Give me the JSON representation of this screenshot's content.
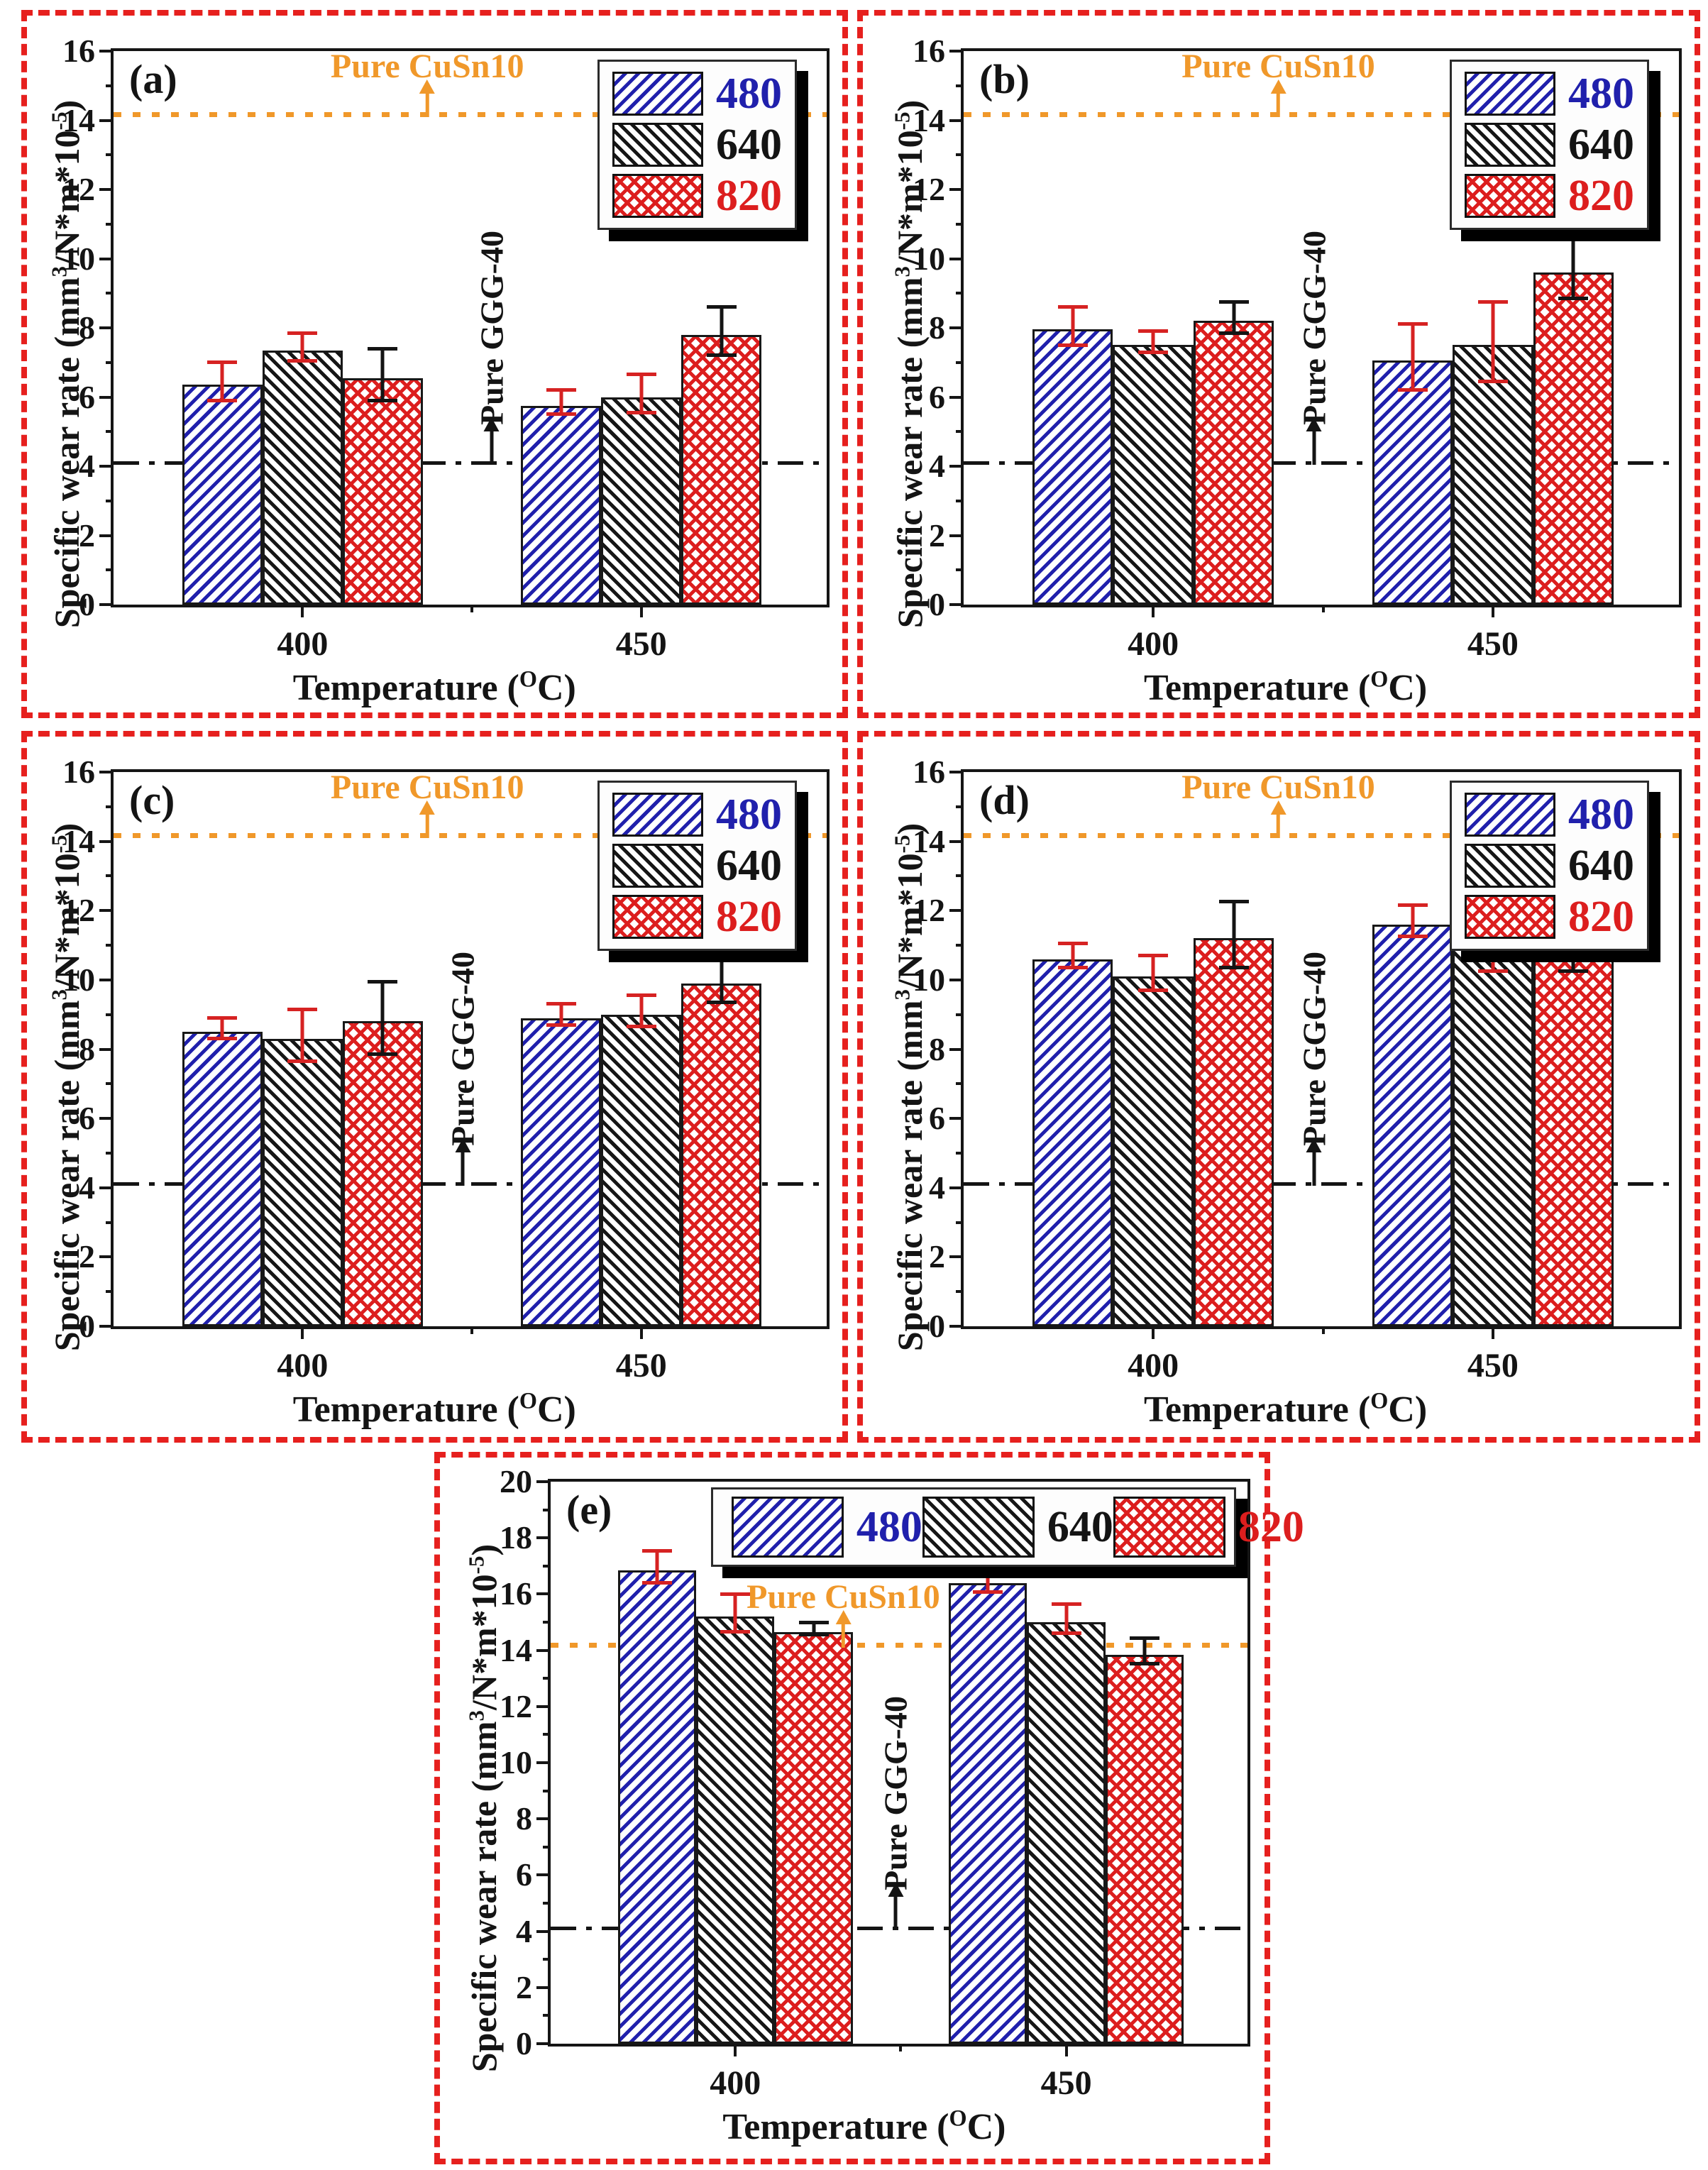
{
  "figure": {
    "background": "#ffffff",
    "panel_border_color": "#e6201e",
    "series_colors": {
      "480": "#2020ac",
      "640": "#141414",
      "820": "#dc1e1e"
    },
    "error_bar_colors": {
      "480": "#d62222",
      "640": "#d62222",
      "820": "#141414"
    },
    "ref_line_colors": {
      "pure_cusn10": "#f0982a",
      "pure_ggg40": "#141414"
    }
  },
  "labels": {
    "ylabel_text": "Specific wear rate (mm3/N*m*10-5)",
    "ylabel_segments": [
      {
        "t": "Specific wear rate (mm"
      },
      {
        "t": "3",
        "sup": true
      },
      {
        "t": "/N*m*10"
      },
      {
        "t": "-5",
        "sup": true
      },
      {
        "t": ")"
      }
    ],
    "xlabel_text": "Temperature (OC)",
    "xlabel_segments": [
      {
        "t": "Temperature ("
      },
      {
        "t": "O",
        "sup": true
      },
      {
        "t": "C)"
      }
    ],
    "cusn10_annotation": "Pure CuSn10",
    "ggg40_annotation": "Pure GGG-40",
    "legend_entries": [
      "480",
      "640",
      "820"
    ]
  },
  "chart_data": [
    {
      "type": "bar",
      "panel_label": "(a)",
      "categories": [
        "400",
        "450"
      ],
      "series": [
        {
          "name": "480",
          "values": [
            6.35,
            5.75
          ],
          "errors": [
            0.5,
            0.3
          ]
        },
        {
          "name": "640",
          "values": [
            7.35,
            6.0
          ],
          "errors": [
            0.35,
            0.5
          ]
        },
        {
          "name": "820",
          "values": [
            6.55,
            7.8
          ],
          "errors": [
            0.7,
            0.65
          ]
        }
      ],
      "ylim": [
        0,
        16
      ],
      "ytick_step": 2,
      "grid": false,
      "xlabel": "Temperature (OC)",
      "ylabel": "Specific wear rate (mm3/N*m*10-5)",
      "legend_position": "top-right-vertical",
      "ref_lines": [
        {
          "name": "Pure CuSn10",
          "value": 14.1,
          "style": "dotted-orange"
        },
        {
          "name": "Pure GGG-40",
          "value": 4.05,
          "style": "dash-dot-black"
        }
      ]
    },
    {
      "type": "bar",
      "panel_label": "(b)",
      "categories": [
        "400",
        "450"
      ],
      "series": [
        {
          "name": "480",
          "values": [
            7.95,
            7.05
          ],
          "errors": [
            0.5,
            0.9
          ]
        },
        {
          "name": "640",
          "values": [
            7.5,
            7.5
          ],
          "errors": [
            0.25,
            1.1
          ]
        },
        {
          "name": "820",
          "values": [
            8.2,
            9.6
          ],
          "errors": [
            0.4,
            0.8
          ]
        }
      ],
      "ylim": [
        0,
        16
      ],
      "ytick_step": 2,
      "grid": false,
      "xlabel": "Temperature (OC)",
      "ylabel": "Specific wear rate (mm3/N*m*10-5)",
      "legend_position": "top-right-vertical",
      "ref_lines": [
        {
          "name": "Pure CuSn10",
          "value": 14.1,
          "style": "dotted-orange"
        },
        {
          "name": "Pure GGG-40",
          "value": 4.05,
          "style": "dash-dot-black"
        }
      ]
    },
    {
      "type": "bar",
      "panel_label": "(c)",
      "categories": [
        "400",
        "450"
      ],
      "series": [
        {
          "name": "480",
          "values": [
            8.5,
            8.9
          ],
          "errors": [
            0.25,
            0.25
          ]
        },
        {
          "name": "640",
          "values": [
            8.3,
            9.0
          ],
          "errors": [
            0.7,
            0.4
          ]
        },
        {
          "name": "820",
          "values": [
            8.8,
            9.9
          ],
          "errors": [
            1.0,
            0.6
          ]
        }
      ],
      "ylim": [
        0,
        16
      ],
      "ytick_step": 2,
      "grid": false,
      "xlabel": "Temperature (OC)",
      "ylabel": "Specific wear rate (mm3/N*m*10-5)",
      "legend_position": "top-right-vertical",
      "ref_lines": [
        {
          "name": "Pure CuSn10",
          "value": 14.1,
          "style": "dotted-orange"
        },
        {
          "name": "Pure GGG-40",
          "value": 4.05,
          "style": "dash-dot-black"
        }
      ]
    },
    {
      "type": "bar",
      "panel_label": "(d)",
      "categories": [
        "400",
        "450"
      ],
      "series": [
        {
          "name": "480",
          "values": [
            10.6,
            11.6
          ],
          "errors": [
            0.3,
            0.4
          ]
        },
        {
          "name": "640",
          "values": [
            10.1,
            10.9
          ],
          "errors": [
            0.45,
            0.7
          ]
        },
        {
          "name": "820",
          "values": [
            11.2,
            10.85
          ],
          "errors": [
            0.9,
            0.65
          ]
        }
      ],
      "ylim": [
        0,
        16
      ],
      "ytick_step": 2,
      "grid": false,
      "xlabel": "Temperature (OC)",
      "ylabel": "Specific wear rate (mm3/N*m*10-5)",
      "legend_position": "top-right-vertical",
      "ref_lines": [
        {
          "name": "Pure CuSn10",
          "value": 14.1,
          "style": "dotted-orange"
        },
        {
          "name": "Pure GGG-40",
          "value": 4.05,
          "style": "dash-dot-black"
        }
      ]
    },
    {
      "type": "bar",
      "panel_label": "(e)",
      "categories": [
        "400",
        "450"
      ],
      "series": [
        {
          "name": "480",
          "values": [
            16.85,
            16.4
          ],
          "errors": [
            0.5,
            0.4
          ]
        },
        {
          "name": "640",
          "values": [
            15.2,
            15.0
          ],
          "errors": [
            0.6,
            0.45
          ]
        },
        {
          "name": "820",
          "values": [
            14.65,
            13.85
          ],
          "errors": [
            0.15,
            0.4
          ]
        }
      ],
      "ylim": [
        0,
        20
      ],
      "ytick_step": 2,
      "grid": false,
      "xlabel": "Temperature (OC)",
      "ylabel": "Specific wear rate (mm3/N*m*10-5)",
      "legend_position": "top-horizontal",
      "ref_lines": [
        {
          "name": "Pure CuSn10",
          "value": 14.1,
          "style": "dotted-orange"
        },
        {
          "name": "Pure GGG-40",
          "value": 4.05,
          "style": "dash-dot-black"
        }
      ]
    }
  ]
}
